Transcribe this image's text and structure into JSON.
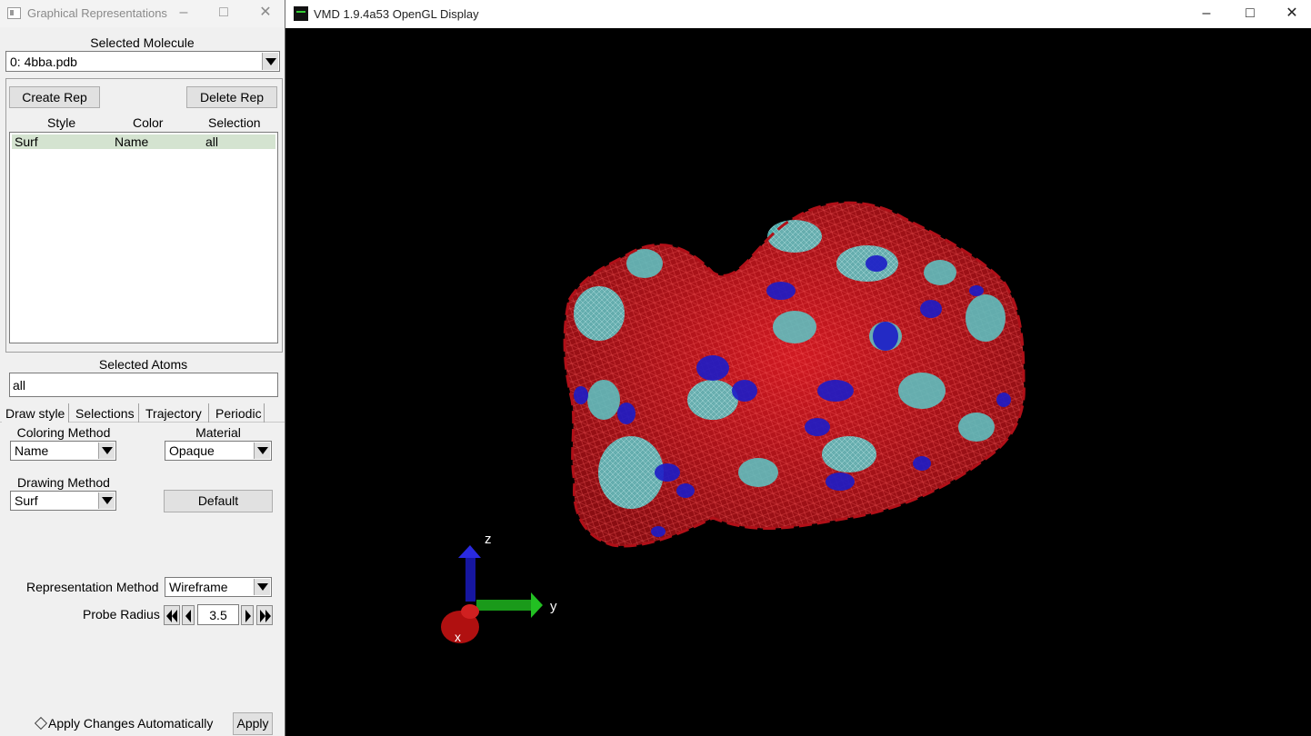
{
  "reps_window": {
    "title": "Graphical Representations",
    "selected_molecule_label": "Selected Molecule",
    "selected_molecule_value": "0: 4bba.pdb",
    "create_rep_label": "Create Rep",
    "delete_rep_label": "Delete Rep",
    "columns": [
      "Style",
      "Color",
      "Selection"
    ],
    "rows": [
      {
        "style": "Surf",
        "color": "Name",
        "selection": "all"
      }
    ],
    "selected_atoms_label": "Selected Atoms",
    "selected_atoms_value": "all",
    "tabs": [
      "Draw style",
      "Selections",
      "Trajectory",
      "Periodic"
    ],
    "coloring_method_label": "Coloring Method",
    "coloring_method_value": "Name",
    "material_label": "Material",
    "material_value": "Opaque",
    "drawing_method_label": "Drawing Method",
    "drawing_method_value": "Surf",
    "default_label": "Default",
    "representation_method_label": "Representation Method",
    "representation_method_value": "Wireframe",
    "probe_radius_label": "Probe Radius",
    "probe_radius_value": "3.5",
    "apply_auto_label": "Apply Changes Automatically",
    "apply_label": "Apply"
  },
  "display_window": {
    "title": "VMD 1.9.4a53 OpenGL Display",
    "axes": {
      "x": "x",
      "y": "y",
      "z": "z"
    },
    "colors": {
      "background": "#000000",
      "red": "#c4141c",
      "cyan": "#5ac8c8",
      "blue": "#1c1cc8"
    }
  }
}
